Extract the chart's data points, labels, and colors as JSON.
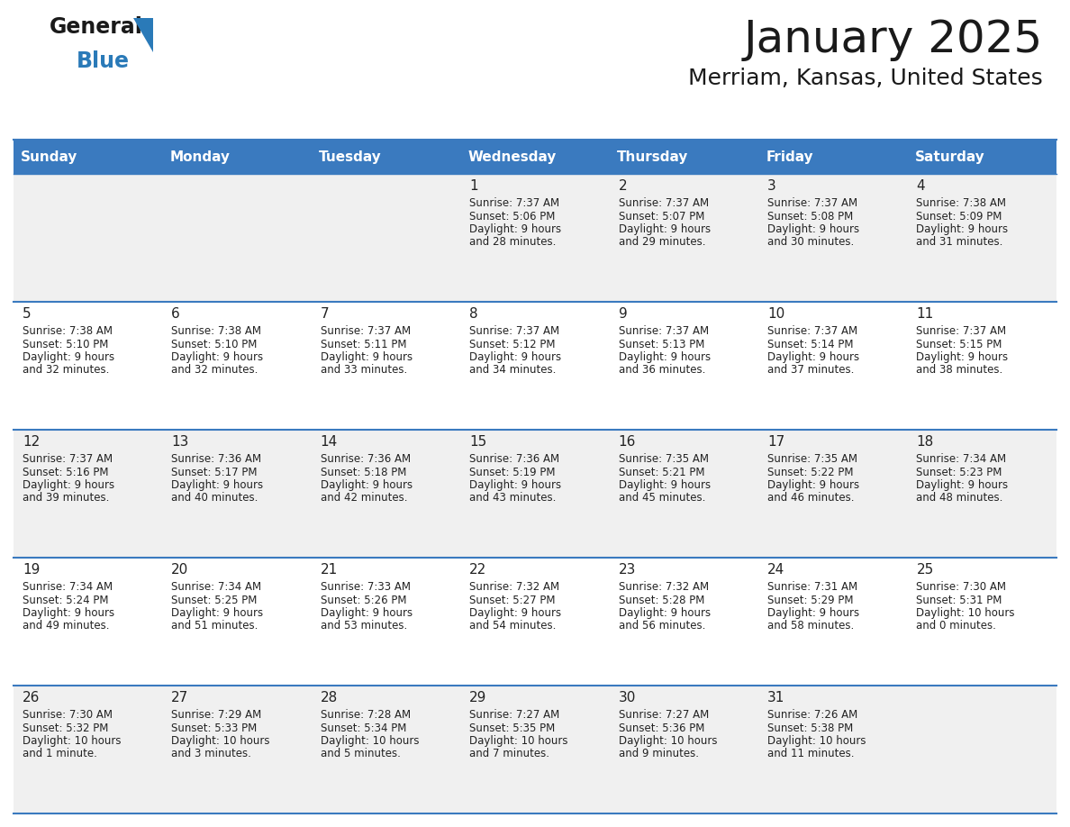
{
  "title": "January 2025",
  "subtitle": "Merriam, Kansas, United States",
  "days_of_week": [
    "Sunday",
    "Monday",
    "Tuesday",
    "Wednesday",
    "Thursday",
    "Friday",
    "Saturday"
  ],
  "header_bg": "#3a7abf",
  "header_text": "#ffffff",
  "cell_bg_even": "#f0f0f0",
  "cell_bg_odd": "#ffffff",
  "grid_line_color": "#3a7abf",
  "text_color": "#222222",
  "title_color": "#1a1a1a",
  "logo_general_color": "#1a1a1a",
  "logo_blue_color": "#2a7ab8",
  "calendar_data": [
    [
      {
        "day": null,
        "sunrise": null,
        "sunset": null,
        "daylight": null
      },
      {
        "day": null,
        "sunrise": null,
        "sunset": null,
        "daylight": null
      },
      {
        "day": null,
        "sunrise": null,
        "sunset": null,
        "daylight": null
      },
      {
        "day": 1,
        "sunrise": "7:37 AM",
        "sunset": "5:06 PM",
        "daylight": "9 hours",
        "daylight2": "and 28 minutes."
      },
      {
        "day": 2,
        "sunrise": "7:37 AM",
        "sunset": "5:07 PM",
        "daylight": "9 hours",
        "daylight2": "and 29 minutes."
      },
      {
        "day": 3,
        "sunrise": "7:37 AM",
        "sunset": "5:08 PM",
        "daylight": "9 hours",
        "daylight2": "and 30 minutes."
      },
      {
        "day": 4,
        "sunrise": "7:38 AM",
        "sunset": "5:09 PM",
        "daylight": "9 hours",
        "daylight2": "and 31 minutes."
      }
    ],
    [
      {
        "day": 5,
        "sunrise": "7:38 AM",
        "sunset": "5:10 PM",
        "daylight": "9 hours",
        "daylight2": "and 32 minutes."
      },
      {
        "day": 6,
        "sunrise": "7:38 AM",
        "sunset": "5:10 PM",
        "daylight": "9 hours",
        "daylight2": "and 32 minutes."
      },
      {
        "day": 7,
        "sunrise": "7:37 AM",
        "sunset": "5:11 PM",
        "daylight": "9 hours",
        "daylight2": "and 33 minutes."
      },
      {
        "day": 8,
        "sunrise": "7:37 AM",
        "sunset": "5:12 PM",
        "daylight": "9 hours",
        "daylight2": "and 34 minutes."
      },
      {
        "day": 9,
        "sunrise": "7:37 AM",
        "sunset": "5:13 PM",
        "daylight": "9 hours",
        "daylight2": "and 36 minutes."
      },
      {
        "day": 10,
        "sunrise": "7:37 AM",
        "sunset": "5:14 PM",
        "daylight": "9 hours",
        "daylight2": "and 37 minutes."
      },
      {
        "day": 11,
        "sunrise": "7:37 AM",
        "sunset": "5:15 PM",
        "daylight": "9 hours",
        "daylight2": "and 38 minutes."
      }
    ],
    [
      {
        "day": 12,
        "sunrise": "7:37 AM",
        "sunset": "5:16 PM",
        "daylight": "9 hours",
        "daylight2": "and 39 minutes."
      },
      {
        "day": 13,
        "sunrise": "7:36 AM",
        "sunset": "5:17 PM",
        "daylight": "9 hours",
        "daylight2": "and 40 minutes."
      },
      {
        "day": 14,
        "sunrise": "7:36 AM",
        "sunset": "5:18 PM",
        "daylight": "9 hours",
        "daylight2": "and 42 minutes."
      },
      {
        "day": 15,
        "sunrise": "7:36 AM",
        "sunset": "5:19 PM",
        "daylight": "9 hours",
        "daylight2": "and 43 minutes."
      },
      {
        "day": 16,
        "sunrise": "7:35 AM",
        "sunset": "5:21 PM",
        "daylight": "9 hours",
        "daylight2": "and 45 minutes."
      },
      {
        "day": 17,
        "sunrise": "7:35 AM",
        "sunset": "5:22 PM",
        "daylight": "9 hours",
        "daylight2": "and 46 minutes."
      },
      {
        "day": 18,
        "sunrise": "7:34 AM",
        "sunset": "5:23 PM",
        "daylight": "9 hours",
        "daylight2": "and 48 minutes."
      }
    ],
    [
      {
        "day": 19,
        "sunrise": "7:34 AM",
        "sunset": "5:24 PM",
        "daylight": "9 hours",
        "daylight2": "and 49 minutes."
      },
      {
        "day": 20,
        "sunrise": "7:34 AM",
        "sunset": "5:25 PM",
        "daylight": "9 hours",
        "daylight2": "and 51 minutes."
      },
      {
        "day": 21,
        "sunrise": "7:33 AM",
        "sunset": "5:26 PM",
        "daylight": "9 hours",
        "daylight2": "and 53 minutes."
      },
      {
        "day": 22,
        "sunrise": "7:32 AM",
        "sunset": "5:27 PM",
        "daylight": "9 hours",
        "daylight2": "and 54 minutes."
      },
      {
        "day": 23,
        "sunrise": "7:32 AM",
        "sunset": "5:28 PM",
        "daylight": "9 hours",
        "daylight2": "and 56 minutes."
      },
      {
        "day": 24,
        "sunrise": "7:31 AM",
        "sunset": "5:29 PM",
        "daylight": "9 hours",
        "daylight2": "and 58 minutes."
      },
      {
        "day": 25,
        "sunrise": "7:30 AM",
        "sunset": "5:31 PM",
        "daylight": "10 hours",
        "daylight2": "and 0 minutes."
      }
    ],
    [
      {
        "day": 26,
        "sunrise": "7:30 AM",
        "sunset": "5:32 PM",
        "daylight": "10 hours",
        "daylight2": "and 1 minute."
      },
      {
        "day": 27,
        "sunrise": "7:29 AM",
        "sunset": "5:33 PM",
        "daylight": "10 hours",
        "daylight2": "and 3 minutes."
      },
      {
        "day": 28,
        "sunrise": "7:28 AM",
        "sunset": "5:34 PM",
        "daylight": "10 hours",
        "daylight2": "and 5 minutes."
      },
      {
        "day": 29,
        "sunrise": "7:27 AM",
        "sunset": "5:35 PM",
        "daylight": "10 hours",
        "daylight2": "and 7 minutes."
      },
      {
        "day": 30,
        "sunrise": "7:27 AM",
        "sunset": "5:36 PM",
        "daylight": "10 hours",
        "daylight2": "and 9 minutes."
      },
      {
        "day": 31,
        "sunrise": "7:26 AM",
        "sunset": "5:38 PM",
        "daylight": "10 hours",
        "daylight2": "and 11 minutes."
      },
      {
        "day": null,
        "sunrise": null,
        "sunset": null,
        "daylight": null,
        "daylight2": null
      }
    ]
  ]
}
